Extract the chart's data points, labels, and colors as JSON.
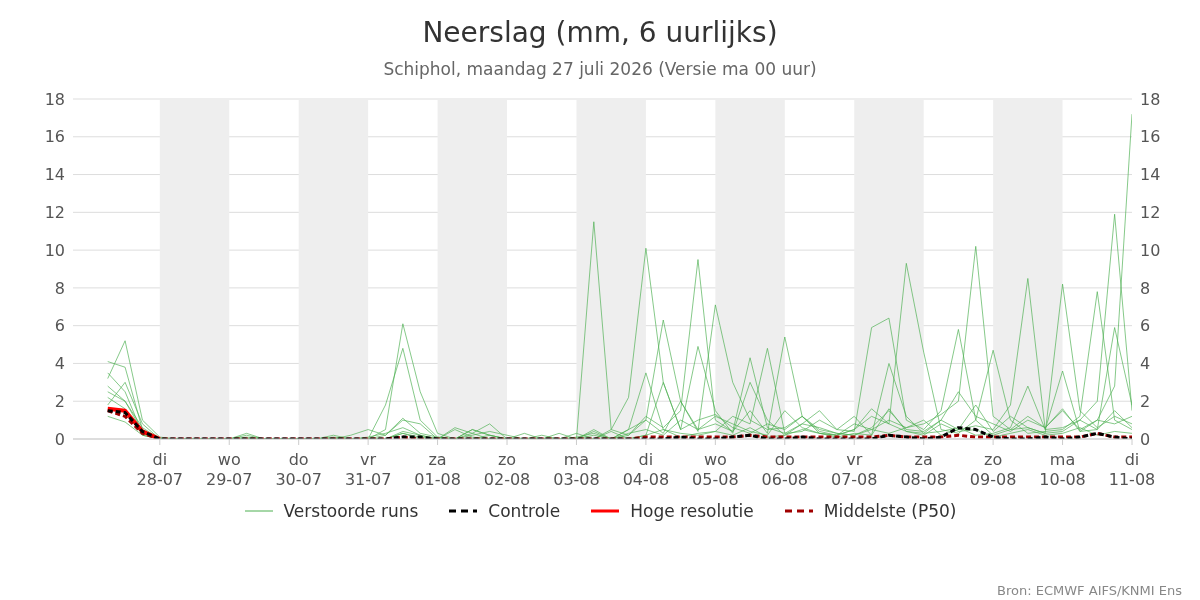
{
  "chart_data": {
    "type": "line",
    "title": "Neerslag (mm, 6 uurlijks)",
    "subtitle": "Schiphol, maandag 27 juli 2026 (Versie ma 00 uur)",
    "annotations": [
      "Bron: ECMWF AIFS/KNMI Ens"
    ],
    "x": [
      "2026-07-27T06:00",
      "2026-07-27T12:00",
      "2026-07-27T18:00",
      "2026-07-28T00:00",
      "2026-07-28T06:00",
      "2026-07-28T12:00",
      "2026-07-28T18:00",
      "2026-07-29T00:00",
      "2026-07-29T06:00",
      "2026-07-29T12:00",
      "2026-07-29T18:00",
      "2026-07-30T00:00",
      "2026-07-30T06:00",
      "2026-07-30T12:00",
      "2026-07-30T18:00",
      "2026-07-31T00:00",
      "2026-07-31T06:00",
      "2026-07-31T12:00",
      "2026-07-31T18:00",
      "2026-08-01T00:00",
      "2026-08-01T06:00",
      "2026-08-01T12:00",
      "2026-08-01T18:00",
      "2026-08-02T00:00",
      "2026-08-02T06:00",
      "2026-08-02T12:00",
      "2026-08-02T18:00",
      "2026-08-03T00:00",
      "2026-08-03T06:00",
      "2026-08-03T12:00",
      "2026-08-03T18:00",
      "2026-08-04T00:00",
      "2026-08-04T06:00",
      "2026-08-04T12:00",
      "2026-08-04T18:00",
      "2026-08-05T00:00",
      "2026-08-05T06:00",
      "2026-08-05T12:00",
      "2026-08-05T18:00",
      "2026-08-06T00:00",
      "2026-08-06T06:00",
      "2026-08-06T12:00",
      "2026-08-06T18:00",
      "2026-08-07T00:00",
      "2026-08-07T06:00",
      "2026-08-07T12:00",
      "2026-08-07T18:00",
      "2026-08-08T00:00",
      "2026-08-08T06:00",
      "2026-08-08T12:00",
      "2026-08-08T18:00",
      "2026-08-09T00:00",
      "2026-08-09T06:00",
      "2026-08-09T12:00",
      "2026-08-09T18:00",
      "2026-08-10T00:00",
      "2026-08-10T06:00",
      "2026-08-10T12:00",
      "2026-08-10T18:00",
      "2026-08-11T00:00"
    ],
    "xlim": [
      "2026-07-26T18:00",
      "2026-08-11T00:00"
    ],
    "xticks": [
      {
        "value": "2026-07-28",
        "label": "di\n28-07"
      },
      {
        "value": "2026-07-29",
        "label": "wo\n29-07"
      },
      {
        "value": "2026-07-30",
        "label": "do\n30-07"
      },
      {
        "value": "2026-07-31",
        "label": "vr\n31-07"
      },
      {
        "value": "2026-08-01",
        "label": "za\n01-08"
      },
      {
        "value": "2026-08-02",
        "label": "zo\n02-08"
      },
      {
        "value": "2026-08-03",
        "label": "ma\n03-08"
      },
      {
        "value": "2026-08-04",
        "label": "di\n04-08"
      },
      {
        "value": "2026-08-05",
        "label": "wo\n05-08"
      },
      {
        "value": "2026-08-06",
        "label": "do\n06-08"
      },
      {
        "value": "2026-08-07",
        "label": "vr\n07-08"
      },
      {
        "value": "2026-08-08",
        "label": "za\n08-08"
      },
      {
        "value": "2026-08-09",
        "label": "zo\n09-08"
      },
      {
        "value": "2026-08-10",
        "label": "ma\n10-08"
      },
      {
        "value": "2026-08-11",
        "label": "di\n11-08"
      }
    ],
    "ylim": [
      0,
      18
    ],
    "yticks": [
      0,
      2,
      4,
      6,
      8,
      10,
      12,
      14,
      16,
      18
    ],
    "y2lim": [
      0,
      18
    ],
    "y2ticks": [
      0,
      2,
      4,
      6,
      8,
      10,
      12,
      14,
      16,
      18
    ],
    "grid": "y",
    "legend": "bottom",
    "marker": "none",
    "bands": [
      {
        "axis": "x",
        "from": "2026-07-28",
        "to": "2026-07-29",
        "color": "#eeeeee"
      },
      {
        "axis": "x",
        "from": "2026-07-30",
        "to": "2026-07-31",
        "color": "#eeeeee"
      },
      {
        "axis": "x",
        "from": "2026-08-01",
        "to": "2026-08-02",
        "color": "#eeeeee"
      },
      {
        "axis": "x",
        "from": "2026-08-03",
        "to": "2026-08-04",
        "color": "#eeeeee"
      },
      {
        "axis": "x",
        "from": "2026-08-05",
        "to": "2026-08-06",
        "color": "#eeeeee"
      },
      {
        "axis": "x",
        "from": "2026-08-07",
        "to": "2026-08-08",
        "color": "#eeeeee"
      },
      {
        "axis": "x",
        "from": "2026-08-09",
        "to": "2026-08-10",
        "color": "#eeeeee"
      }
    ],
    "series": [
      {
        "name": "Verstoorde runs",
        "color": "#4caf50",
        "values": [
          3.5,
          2.5,
          0.3,
          0,
          0,
          0,
          0,
          0,
          0.3,
          0,
          0,
          0,
          0,
          0,
          0,
          0,
          0.2,
          1.1,
          0.3,
          0.1,
          0,
          0.5,
          0.2,
          0,
          0.3,
          0,
          0,
          0,
          11.5,
          0.5,
          0.2,
          1.0,
          0.3,
          2.0,
          0.5,
          1.2,
          0.8,
          0.4,
          0.2,
          1.5,
          0.6,
          0.3,
          0.2,
          0.5,
          1.2,
          0.8,
          0.4,
          0.3,
          1.0,
          2.5,
          1.2,
          0.8,
          0.4,
          1.0,
          0.6,
          1.5,
          0.5,
          1.0,
          2.8,
          17.2
        ]
      },
      {
        "color": "#4caf50",
        "values": [
          4.1,
          3.8,
          0.5,
          0,
          0,
          0,
          0,
          0,
          0.1,
          0,
          0,
          0,
          0,
          0.2,
          0,
          0,
          0,
          0.3,
          0.1,
          0,
          0,
          0.3,
          0.8,
          0,
          0,
          0,
          0.3,
          0,
          0,
          0.5,
          2.2,
          10.1,
          3.0,
          0.5,
          1.0,
          1.3,
          0.6,
          0.3,
          0.8,
          0.5,
          1.2,
          0.4,
          0.2,
          0.8,
          0.5,
          0.3,
          0.6,
          1.0,
          0.2,
          0.5,
          1.8,
          0.4,
          1.2,
          0.6,
          0.3,
          8.2,
          1.5,
          0.6,
          1.2,
          0.8
        ]
      },
      {
        "color": "#4caf50",
        "values": [
          3.2,
          5.2,
          1.0,
          0.1,
          0,
          0,
          0,
          0,
          0,
          0,
          0,
          0,
          0,
          0,
          0,
          0.1,
          0.3,
          0.6,
          0.2,
          0,
          0,
          0,
          0.2,
          0,
          0,
          0,
          0,
          0,
          0.2,
          0,
          0.5,
          1.0,
          6.3,
          2.0,
          0.4,
          7.1,
          3.0,
          1.0,
          0.5,
          0.6,
          1.2,
          0.3,
          0.2,
          0.5,
          1.6,
          0.8,
          9.3,
          4.6,
          0.5,
          0.3,
          1.0,
          0.2,
          0.5,
          1.2,
          0.6,
          1.6,
          0.4,
          1.0,
          0.8,
          1.2
        ]
      },
      {
        "color": "#4caf50",
        "values": [
          2.8,
          2.0,
          0.4,
          0,
          0,
          0,
          0,
          0,
          0,
          0,
          0,
          0,
          0,
          0,
          0,
          0,
          0.5,
          6.1,
          2.5,
          0.3,
          0,
          0.5,
          0.2,
          0,
          0,
          0,
          0,
          0,
          0.5,
          0,
          0.2,
          1.2,
          0.6,
          1.5,
          9.5,
          1.0,
          0.4,
          4.3,
          0.6,
          0.3,
          0.8,
          0.6,
          0.3,
          0.2,
          0.5,
          1.0,
          0.6,
          0.8,
          1.3,
          2.0,
          10.2,
          1.2,
          0.5,
          0.6,
          0.3,
          0.4,
          1.0,
          0.5,
          1.5,
          0.6
        ]
      },
      {
        "color": "#4caf50",
        "values": [
          2.2,
          1.6,
          0.2,
          0,
          0,
          0,
          0,
          0,
          0.2,
          0,
          0,
          0,
          0,
          0,
          0,
          0,
          0,
          0.4,
          0.2,
          0,
          0.5,
          0.1,
          0,
          0,
          0,
          0,
          0,
          0,
          0.4,
          0,
          0.3,
          0.5,
          0.2,
          1.0,
          0.5,
          0.8,
          0.4,
          1.5,
          0.3,
          5.4,
          1.2,
          0.5,
          0.3,
          0.2,
          0.6,
          1.5,
          0.5,
          0.4,
          1.0,
          0.5,
          0.7,
          0.5,
          1.8,
          8.5,
          0.5,
          0.6,
          1.0,
          2.0,
          11.9,
          1.5
        ]
      },
      {
        "color": "#4caf50",
        "values": [
          1.8,
          3.0,
          0.8,
          0,
          0,
          0,
          0,
          0,
          0,
          0,
          0,
          0,
          0,
          0.1,
          0,
          0,
          1.8,
          4.8,
          1.0,
          0.1,
          0,
          0.2,
          0.4,
          0.2,
          0,
          0,
          0,
          0.1,
          0.3,
          0,
          0.5,
          3.5,
          0.5,
          0.3,
          0.2,
          0.4,
          1.2,
          0.8,
          4.8,
          0.3,
          0.4,
          1.0,
          0.5,
          0.4,
          5.9,
          6.4,
          1.0,
          0.5,
          1.5,
          5.8,
          1.0,
          4.7,
          1.0,
          0.3,
          0.4,
          0.5,
          1.2,
          7.8,
          1.0,
          0.5
        ]
      },
      {
        "color": "#4caf50",
        "values": [
          2.5,
          2.0,
          0.6,
          0,
          0,
          0,
          0,
          0,
          0,
          0,
          0,
          0,
          0,
          0,
          0.2,
          0.5,
          0.2,
          1.0,
          0.8,
          0,
          0.6,
          0.3,
          0,
          0,
          0,
          0,
          0,
          0.3,
          0,
          0.4,
          0,
          0.2,
          3.0,
          0.5,
          4.9,
          1.5,
          0.3,
          3.0,
          1.0,
          0.2,
          0.8,
          1.5,
          0.5,
          1.2,
          0.2,
          4.0,
          1.2,
          0.3,
          0.4,
          0.6,
          0.2,
          0.3,
          0.6,
          2.8,
          0.5,
          3.6,
          0.4,
          0.5,
          5.9,
          1.8
        ]
      },
      {
        "color": "#4caf50",
        "values": [
          1.2,
          0.9,
          0.2,
          0,
          0,
          0,
          0,
          0,
          0,
          0,
          0,
          0,
          0,
          0,
          0,
          0,
          0,
          0.3,
          0,
          0,
          0,
          0,
          0,
          0,
          0,
          0.2,
          0,
          0,
          0,
          0,
          0,
          0.2,
          0.5,
          0.1,
          0.3,
          0.4,
          0.2,
          0.6,
          0.1,
          0.2,
          0.5,
          0.3,
          0.1,
          0.3,
          0.2,
          1.6,
          0.4,
          0.2,
          0.8,
          0.4,
          0.5,
          0.1,
          0.3,
          0.5,
          0.2,
          0.3,
          0.6,
          0.2,
          0.4,
          0.3
        ]
      },
      {
        "name": "Controle",
        "color": "#000000",
        "line_style": "dashed",
        "values": [
          1.5,
          1.4,
          0.4,
          0,
          0,
          0,
          0,
          0,
          0,
          0,
          0,
          0,
          0,
          0,
          0,
          0,
          0,
          0.1,
          0.1,
          0,
          0,
          0,
          0,
          0,
          0,
          0,
          0,
          0,
          0,
          0,
          0,
          0,
          0,
          0.1,
          0,
          0,
          0.1,
          0.2,
          0,
          0,
          0.1,
          0,
          0,
          0,
          0,
          0.2,
          0.1,
          0,
          0.1,
          0.6,
          0.5,
          0.1,
          0,
          0,
          0.1,
          0,
          0.1,
          0.3,
          0.1,
          0
        ]
      },
      {
        "name": "Hoge resolutie",
        "color": "#ff0000",
        "line_style": "solid",
        "values": [
          1.6,
          1.5,
          0.4,
          0,
          null,
          null,
          null,
          null,
          null,
          null,
          null,
          null,
          null,
          null,
          null,
          null,
          null,
          null,
          null,
          null,
          null,
          null,
          null,
          null,
          null,
          null,
          null,
          null,
          null,
          null,
          null,
          null,
          null,
          null,
          null,
          null,
          null,
          null,
          null,
          null,
          null,
          null,
          null,
          null,
          null,
          null,
          null,
          null,
          null,
          null,
          null,
          null,
          null,
          null,
          null,
          null,
          null,
          null,
          null,
          null
        ]
      },
      {
        "name": "Middelste (P50)",
        "color": "#a00000",
        "line_style": "dashed",
        "values": [
          1.5,
          1.2,
          0.3,
          0,
          0,
          0,
          0,
          0,
          0,
          0,
          0,
          0,
          0,
          0,
          0,
          0,
          0,
          0.1,
          0,
          0,
          0,
          0,
          0,
          0,
          0,
          0,
          0,
          0,
          0,
          0,
          0,
          0.1,
          0.1,
          0.1,
          0.1,
          0.1,
          0.1,
          0.2,
          0.1,
          0.1,
          0.1,
          0.1,
          0.1,
          0.1,
          0.1,
          0.2,
          0.1,
          0.1,
          0.1,
          0.2,
          0.1,
          0.1,
          0.1,
          0.1,
          0.1,
          0.1,
          0.1,
          0.3,
          0.1,
          0.1
        ]
      }
    ]
  }
}
